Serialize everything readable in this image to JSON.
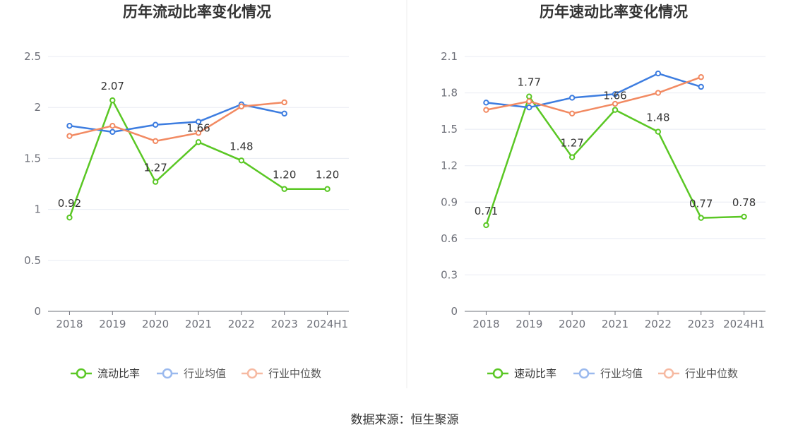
{
  "chart_data": [
    {
      "type": "line",
      "title": "历年流动比率变化情况",
      "categories": [
        "2018",
        "2019",
        "2020",
        "2021",
        "2022",
        "2023",
        "2024H1"
      ],
      "ylim": [
        0,
        2.5
      ],
      "yticks": [
        "0",
        "0.5",
        "1",
        "1.5",
        "2",
        "2.5"
      ],
      "series": [
        {
          "name": "流动比率",
          "color": "#5ac724",
          "values": [
            0.92,
            2.07,
            1.27,
            1.66,
            1.48,
            1.2,
            1.2
          ],
          "labels": [
            "0.92",
            "2.07",
            "1.27",
            "1.66",
            "1.48",
            "1.20",
            "1.20"
          ]
        },
        {
          "name": "行业均值",
          "color": "#3d7de0",
          "values": [
            1.82,
            1.76,
            1.83,
            1.86,
            2.03,
            1.94,
            null
          ]
        },
        {
          "name": "行业中位数",
          "color": "#f28a62",
          "values": [
            1.72,
            1.82,
            1.67,
            1.75,
            2.01,
            2.05,
            null
          ]
        }
      ]
    },
    {
      "type": "line",
      "title": "历年速动比率变化情况",
      "categories": [
        "2018",
        "2019",
        "2020",
        "2021",
        "2022",
        "2023",
        "2024H1"
      ],
      "ylim": [
        0,
        2.1
      ],
      "yticks": [
        "0",
        "0.3",
        "0.6",
        "0.9",
        "1.2",
        "1.5",
        "1.8",
        "2.1"
      ],
      "series": [
        {
          "name": "速动比率",
          "color": "#5ac724",
          "values": [
            0.71,
            1.77,
            1.27,
            1.66,
            1.48,
            0.77,
            0.78
          ],
          "labels": [
            "0.71",
            "1.77",
            "1.27",
            "1.66",
            "1.48",
            "0.77",
            "0.78"
          ]
        },
        {
          "name": "行业均值",
          "color": "#3d7de0",
          "values": [
            1.72,
            1.68,
            1.76,
            1.79,
            1.96,
            1.85,
            null
          ]
        },
        {
          "name": "行业中位数",
          "color": "#f28a62",
          "values": [
            1.66,
            1.73,
            1.63,
            1.71,
            1.8,
            1.93,
            null
          ]
        }
      ]
    }
  ],
  "source_text": "数据来源：恒生聚源"
}
